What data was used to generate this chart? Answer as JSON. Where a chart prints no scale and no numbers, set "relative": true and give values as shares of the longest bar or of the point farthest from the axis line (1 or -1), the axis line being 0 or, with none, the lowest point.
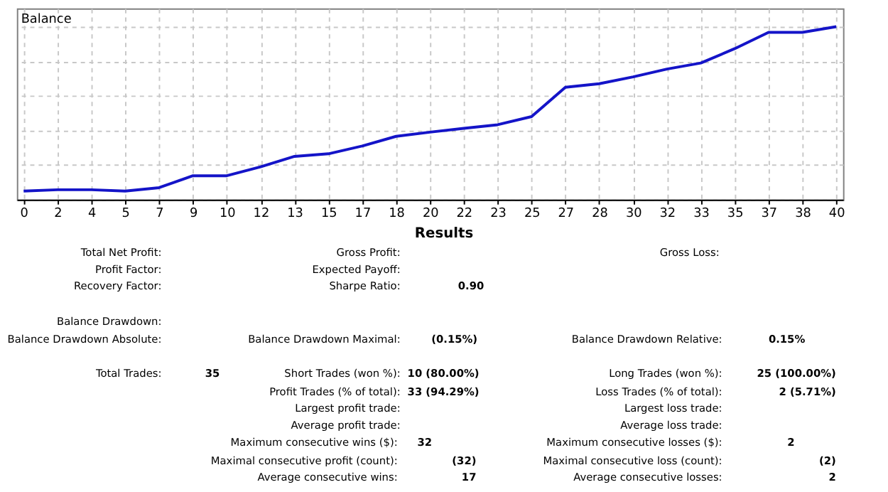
{
  "chart_data": {
    "type": "line",
    "title": "Balance",
    "relative": true,
    "grid": true,
    "categories": [
      "0",
      "2",
      "4",
      "5",
      "7",
      "9",
      "10",
      "12",
      "13",
      "15",
      "17",
      "18",
      "20",
      "22",
      "23",
      "25",
      "27",
      "28",
      "30",
      "32",
      "33",
      "35",
      "37",
      "38",
      "40"
    ],
    "series": [
      {
        "color": "#1414c8",
        "values": [
          0.049,
          0.057,
          0.057,
          0.049,
          0.069,
          0.138,
          0.138,
          0.19,
          0.25,
          0.265,
          0.31,
          0.366,
          0.39,
          0.412,
          0.433,
          0.48,
          0.65,
          0.67,
          0.71,
          0.755,
          0.79,
          0.873,
          0.967,
          0.967,
          1.0
        ]
      }
    ],
    "annotations": [
      "Results",
      "Total Net Profit:",
      "Gross Profit:",
      "Gross Loss:",
      "Profit Factor:",
      "Expected Payoff:",
      "Recovery Factor:",
      "Sharpe Ratio:",
      "0.90",
      "Balance Drawdown:",
      "Balance Drawdown Absolute:",
      "Balance Drawdown Maximal:",
      "(0.15%)",
      "Balance Drawdown Relative:",
      "0.15%",
      "Total Trades:",
      "35",
      "Short Trades (won %):",
      "10 (80.00%)",
      "Long Trades (won %):",
      "25 (100.00%)",
      "Profit Trades (% of total):",
      "33 (94.29%)",
      "Loss Trades (% of total):",
      "2 (5.71%)",
      "Largest profit trade:",
      "Largest loss trade:",
      "Average profit trade:",
      "Average loss trade:",
      "Maximum consecutive wins ($):",
      "32",
      "Maximum consecutive losses ($):",
      "2",
      "Maximal consecutive profit (count):",
      "(32)",
      "Maximal consecutive loss (count):",
      "(2)",
      "Average consecutive wins:",
      "17",
      "Average consecutive losses:",
      "2"
    ]
  }
}
